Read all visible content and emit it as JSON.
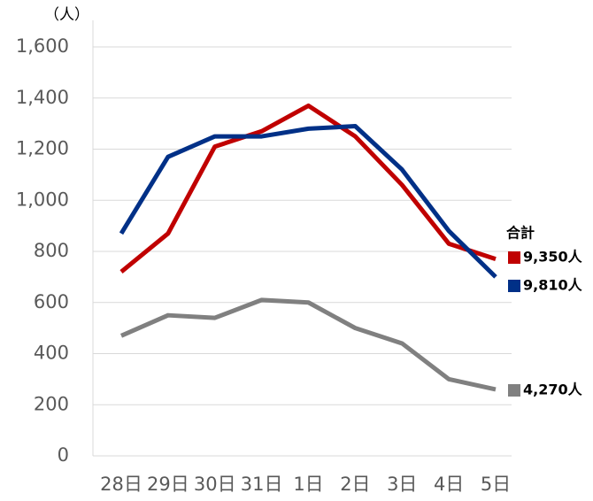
{
  "chart_data": {
    "type": "line",
    "y_axis_label": "（人）",
    "legend_title": "合計",
    "categories": [
      "28日",
      "29日",
      "30日",
      "31日",
      "1日",
      "2日",
      "3日",
      "4日",
      "5日"
    ],
    "series": [
      {
        "name": "9,350人",
        "color": "#c00000",
        "values": [
          720,
          870,
          1210,
          1270,
          1370,
          1250,
          1060,
          830,
          770
        ]
      },
      {
        "name": "9,810人",
        "color": "#003087",
        "values": [
          870,
          1170,
          1250,
          1250,
          1280,
          1290,
          1120,
          880,
          700
        ]
      },
      {
        "name": "4,270人",
        "color": "#808080",
        "values": [
          470,
          550,
          540,
          610,
          600,
          500,
          440,
          300,
          260
        ]
      }
    ],
    "ylim": [
      0,
      1600
    ],
    "yticks": [
      0,
      200,
      400,
      600,
      800,
      {
        "value": 1000,
        "label": "1,000"
      },
      {
        "value": 1200,
        "label": "1,200"
      },
      {
        "value": 1400,
        "label": "1,400"
      },
      {
        "value": 1600,
        "label": "1,600"
      }
    ],
    "grid": true
  }
}
